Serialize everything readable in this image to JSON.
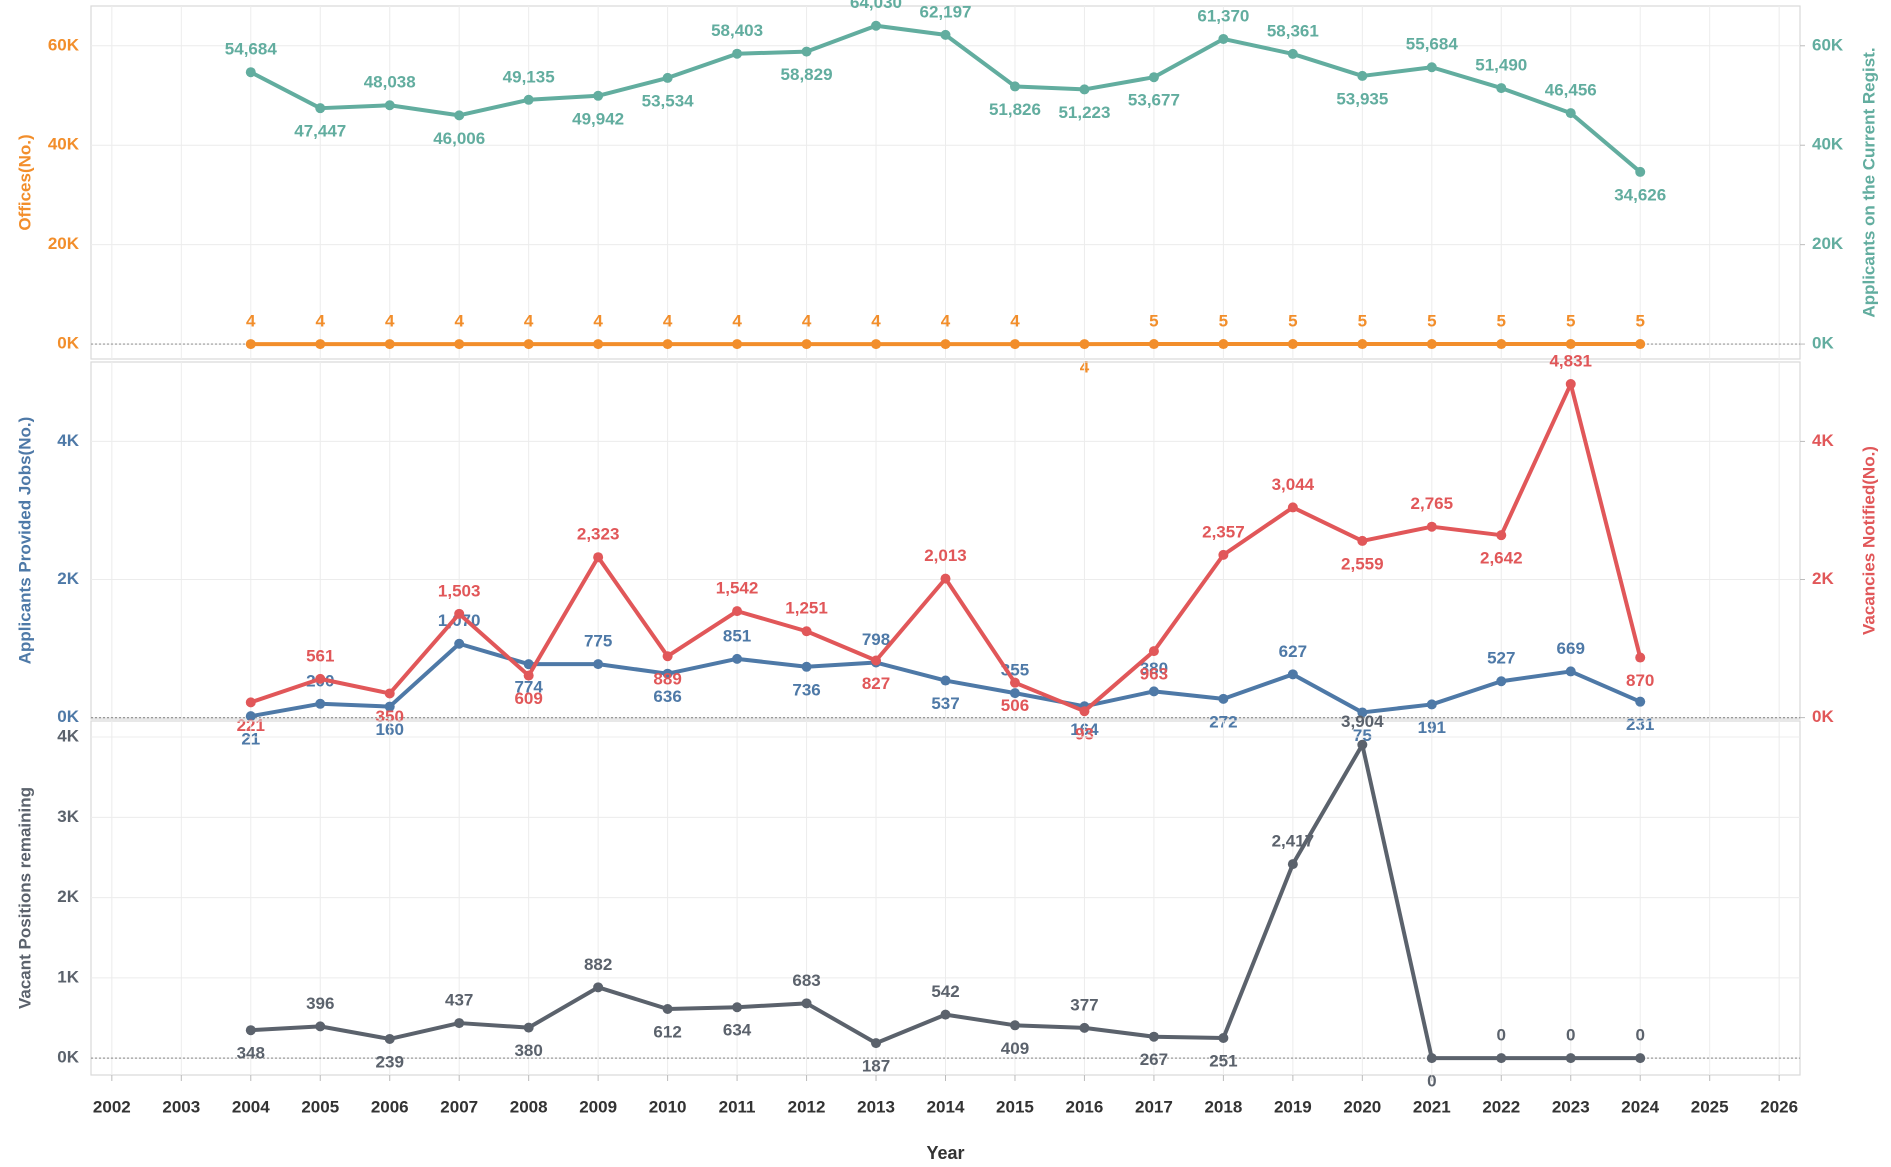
{
  "chart_data": [
    {
      "type": "line",
      "x": [
        2004,
        2005,
        2006,
        2007,
        2008,
        2009,
        2010,
        2011,
        2012,
        2013,
        2014,
        2015,
        2016,
        2017,
        2018,
        2019,
        2020,
        2021,
        2022,
        2023,
        2024
      ],
      "ylim": [
        -3000,
        68000
      ],
      "yticks": [
        {
          "value": 0,
          "label": "0K"
        },
        {
          "value": 20000,
          "label": "20K"
        },
        {
          "value": 40000,
          "label": "40K"
        },
        {
          "value": 60000,
          "label": "60K"
        }
      ],
      "y2lim": [
        -3000,
        68000
      ],
      "y2ticks": [
        {
          "value": 0,
          "label": "0K"
        },
        {
          "value": 20000,
          "label": "20K"
        },
        {
          "value": 40000,
          "label": "40K"
        },
        {
          "value": 60000,
          "label": "60K"
        }
      ],
      "grid": true,
      "series": [
        {
          "name": "Offices(No.)",
          "color": "#f28e2b",
          "axis": "y",
          "values": [
            4,
            4,
            4,
            4,
            4,
            4,
            4,
            4,
            4,
            4,
            4,
            4,
            4,
            5,
            5,
            5,
            5,
            5,
            5,
            5,
            5
          ]
        },
        {
          "name": "Applicants on the Current Regist.",
          "color": "#62ad9f",
          "axis": "y2",
          "values": [
            54684,
            47447,
            48038,
            46006,
            49135,
            49942,
            53534,
            58403,
            58829,
            64030,
            62197,
            51826,
            51223,
            53677,
            61370,
            58361,
            53935,
            55684,
            51490,
            46456,
            34626
          ],
          "value_labels": [
            "54,684",
            "47,447",
            "48,038",
            "46,006",
            "49,135",
            "49,942",
            "53,534",
            "58,403",
            "58,829",
            "64,030",
            "62,197",
            "51,826",
            "51,223",
            "53,677",
            "61,370",
            "58,361",
            "53,935",
            "55,684",
            "51,490",
            "46,456",
            "34,626"
          ]
        }
      ]
    },
    {
      "type": "line",
      "x": [
        2004,
        2005,
        2006,
        2007,
        2008,
        2009,
        2010,
        2011,
        2012,
        2013,
        2014,
        2015,
        2016,
        2017,
        2018,
        2019,
        2020,
        2021,
        2022,
        2023,
        2024
      ],
      "ylim": [
        -20,
        5150
      ],
      "yticks": [
        {
          "value": 0,
          "label": "0K"
        },
        {
          "value": 2000,
          "label": "2K"
        },
        {
          "value": 4000,
          "label": "4K"
        }
      ],
      "y2lim": [
        -20,
        5150
      ],
      "y2ticks": [
        {
          "value": 0,
          "label": "0K"
        },
        {
          "value": 2000,
          "label": "2K"
        },
        {
          "value": 4000,
          "label": "4K"
        }
      ],
      "grid": true,
      "series": [
        {
          "name": "Applicants Provided Jobs(No.)",
          "color": "#4e79a7",
          "axis": "y",
          "values": [
            21,
            200,
            160,
            1070,
            774,
            775,
            636,
            851,
            736,
            798,
            537,
            355,
            164,
            380,
            272,
            627,
            75,
            191,
            527,
            669,
            231
          ],
          "value_labels": [
            "21",
            "200",
            "160",
            "1,070",
            "774",
            "775",
            "636",
            "851",
            "736",
            "798",
            "537",
            "355",
            "164",
            "380",
            "272",
            "627",
            "75",
            "191",
            "527",
            "669",
            "231"
          ]
        },
        {
          "name": "Vacancies Notified(No.)",
          "color": "#e15759",
          "axis": "y2",
          "values": [
            221,
            561,
            350,
            1503,
            609,
            2323,
            889,
            1542,
            1251,
            827,
            2013,
            506,
            93,
            963,
            2357,
            3044,
            2559,
            2765,
            2642,
            4831,
            870
          ],
          "value_labels": [
            "221",
            "561",
            "350",
            "1,503",
            "609",
            "2,323",
            "889",
            "1,542",
            "1,251",
            "827",
            "2,013",
            "506",
            "93",
            "963",
            "2,357",
            "3,044",
            "2,559",
            "2,765",
            "2,642",
            "4,831",
            "870"
          ]
        }
      ]
    },
    {
      "type": "line",
      "x": [
        2004,
        2005,
        2006,
        2007,
        2008,
        2009,
        2010,
        2011,
        2012,
        2013,
        2014,
        2015,
        2016,
        2017,
        2018,
        2019,
        2020,
        2021,
        2022,
        2023,
        2024
      ],
      "xlim": [
        2001.7,
        2026.3
      ],
      "xticks": [
        2002,
        2003,
        2004,
        2005,
        2006,
        2007,
        2008,
        2009,
        2010,
        2011,
        2012,
        2013,
        2014,
        2015,
        2016,
        2017,
        2018,
        2019,
        2020,
        2021,
        2022,
        2023,
        2024,
        2025,
        2026
      ],
      "xlabel": "Year",
      "ylim": [
        -210,
        4200
      ],
      "yticks": [
        {
          "value": 0,
          "label": "0K"
        },
        {
          "value": 1000,
          "label": "1K"
        },
        {
          "value": 2000,
          "label": "2K"
        },
        {
          "value": 3000,
          "label": "3K"
        },
        {
          "value": 4000,
          "label": "4K"
        }
      ],
      "grid": true,
      "series": [
        {
          "name": "Vacant Positions remaining",
          "color": "#5b626c",
          "axis": "y",
          "values": [
            348,
            396,
            239,
            437,
            380,
            882,
            612,
            634,
            683,
            187,
            542,
            409,
            377,
            267,
            251,
            2417,
            3904,
            0,
            0,
            0,
            0
          ],
          "value_labels": [
            "348",
            "396",
            "239",
            "437",
            "380",
            "882",
            "612",
            "634",
            "683",
            "187",
            "542",
            "409",
            "377",
            "267",
            "251",
            "2,417",
            "3,904",
            "0",
            "0",
            "0",
            "0"
          ]
        }
      ]
    }
  ]
}
